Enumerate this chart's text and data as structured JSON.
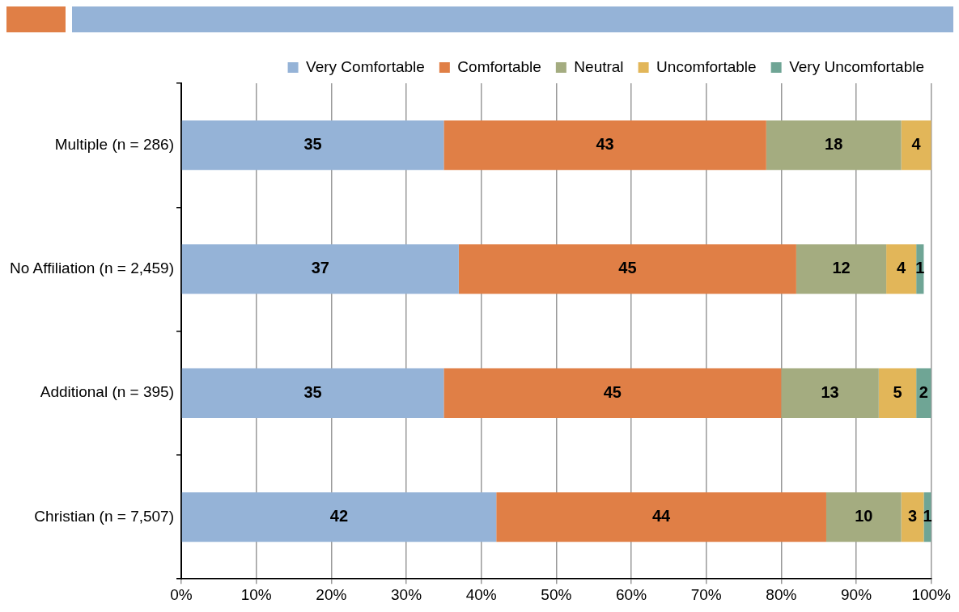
{
  "chart_data": {
    "type": "bar",
    "orientation": "horizontal",
    "stacked": true,
    "categories": [
      "Multiple (n = 286)",
      "No Affiliation (n = 2,459)",
      "Additional (n = 395)",
      "Christian (n = 7,507)"
    ],
    "series": [
      {
        "name": "Very Comfortable",
        "color": "#95b3d7",
        "values": [
          35,
          37,
          35,
          42
        ],
        "value_labels": [
          "35",
          "37",
          "35",
          "42"
        ]
      },
      {
        "name": "Comfortable",
        "color": "#e07f46",
        "values": [
          43,
          45,
          45,
          44
        ],
        "value_labels": [
          "43",
          "45",
          "45",
          "44"
        ]
      },
      {
        "name": "Neutral",
        "color": "#a4ac80",
        "values": [
          18,
          12,
          13,
          10
        ],
        "value_labels": [
          "18",
          "12",
          "13",
          "10"
        ]
      },
      {
        "name": "Uncomfortable",
        "color": "#e2b659",
        "values": [
          4,
          4,
          5,
          3
        ],
        "value_labels": [
          "4",
          "4",
          "5",
          "3"
        ]
      },
      {
        "name": "Very Uncomfortable",
        "color": "#6fa595",
        "values": [
          null,
          1,
          2,
          1
        ],
        "value_labels": [
          null,
          "1",
          "2",
          "1"
        ]
      }
    ],
    "xlim": [
      0,
      100
    ],
    "xticks": [
      {
        "value": 0,
        "label": "0%"
      },
      {
        "value": 10,
        "label": "10%"
      },
      {
        "value": 20,
        "label": "20%"
      },
      {
        "value": 30,
        "label": "30%"
      },
      {
        "value": 40,
        "label": "40%"
      },
      {
        "value": 50,
        "label": "50%"
      },
      {
        "value": 60,
        "label": "60%"
      },
      {
        "value": 70,
        "label": "70%"
      },
      {
        "value": 80,
        "label": "80%"
      },
      {
        "value": 90,
        "label": "90%"
      },
      {
        "value": 100,
        "label": "100%"
      }
    ],
    "grid": "x",
    "legend": "top right"
  }
}
